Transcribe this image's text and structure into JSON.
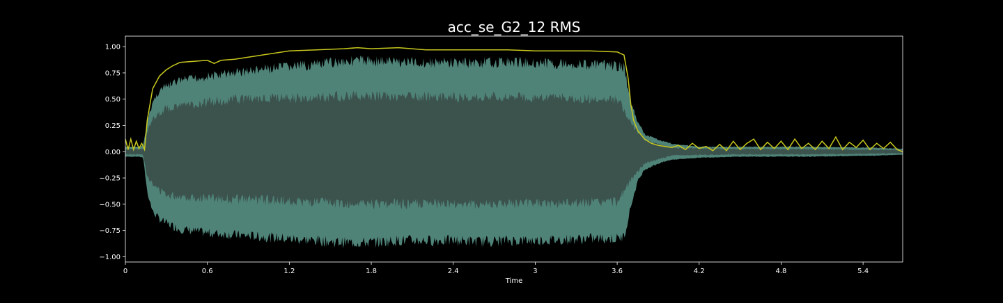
{
  "chart_data": {
    "type": "area",
    "title": "acc_se_G2_12 RMS",
    "xlabel": "Time",
    "ylabel": "",
    "xlim": [
      0,
      5.69
    ],
    "ylim": [
      -1.05,
      1.1
    ],
    "x_ticks": [
      0,
      0.6,
      1.2,
      1.8,
      2.4,
      3,
      3.6,
      4.2,
      4.8,
      5.4
    ],
    "x_tick_labels": [
      "0",
      "0.6",
      "1.2",
      "1.8",
      "2.4",
      "3",
      "3.6",
      "4.2",
      "4.8",
      "5.4"
    ],
    "y_ticks": [
      1.0,
      0.75,
      0.5,
      0.25,
      0.0,
      -0.25,
      -0.5,
      -0.75,
      -1.0
    ],
    "y_tick_labels": [
      "1.00",
      "0.75",
      "0.50",
      "0.25",
      "0.00",
      "−0.25",
      "−0.50",
      "−0.75",
      "−1.00"
    ],
    "grid": false,
    "legend": "none",
    "colors": {
      "background": "#000000",
      "axes_edge": "#ffffff",
      "text": "#ffffff",
      "waveform_envelope": "#4f8378",
      "waveform_core": "#3c534d",
      "rms_line": "#c8c81e"
    },
    "series": [
      {
        "role": "waveform_upper",
        "x": [
          0,
          0.05,
          0.1,
          0.13,
          0.16,
          0.2,
          0.25,
          0.3,
          0.4,
          0.5,
          0.6,
          0.8,
          1.0,
          1.2,
          1.4,
          1.6,
          1.8,
          2.0,
          2.2,
          2.4,
          2.6,
          2.8,
          3.0,
          3.2,
          3.4,
          3.6,
          3.65,
          3.7,
          3.75,
          3.8,
          3.9,
          4.0,
          4.2,
          4.5,
          5.0,
          5.5,
          5.69
        ],
        "y": [
          0.05,
          0.05,
          0.05,
          0.06,
          0.3,
          0.5,
          0.62,
          0.66,
          0.72,
          0.74,
          0.76,
          0.8,
          0.83,
          0.86,
          0.88,
          0.92,
          0.92,
          0.91,
          0.9,
          0.9,
          0.9,
          0.91,
          0.9,
          0.89,
          0.88,
          0.87,
          0.85,
          0.5,
          0.3,
          0.18,
          0.12,
          0.08,
          0.05,
          0.05,
          0.05,
          0.04,
          0.03
        ]
      },
      {
        "role": "waveform_lower",
        "x": [
          0,
          0.05,
          0.1,
          0.13,
          0.16,
          0.2,
          0.25,
          0.3,
          0.4,
          0.5,
          0.6,
          0.8,
          1.0,
          1.2,
          1.4,
          1.6,
          1.8,
          2.0,
          2.2,
          2.4,
          2.6,
          2.8,
          3.0,
          3.2,
          3.4,
          3.6,
          3.65,
          3.7,
          3.75,
          3.8,
          3.9,
          4.0,
          4.2,
          4.5,
          5.0,
          5.5,
          5.69
        ],
        "y": [
          -0.05,
          -0.05,
          -0.05,
          -0.06,
          -0.4,
          -0.6,
          -0.68,
          -0.72,
          -0.78,
          -0.8,
          -0.82,
          -0.84,
          -0.86,
          -0.88,
          -0.9,
          -0.92,
          -0.92,
          -0.9,
          -0.9,
          -0.9,
          -0.91,
          -0.9,
          -0.9,
          -0.89,
          -0.88,
          -0.88,
          -0.86,
          -0.55,
          -0.3,
          -0.18,
          -0.12,
          -0.08,
          -0.06,
          -0.05,
          -0.05,
          -0.04,
          -0.03
        ]
      },
      {
        "role": "waveform_core_upper",
        "x": [
          0,
          0.13,
          0.16,
          0.2,
          0.3,
          0.5,
          0.8,
          1.2,
          1.6,
          2.0,
          2.4,
          2.8,
          3.2,
          3.6,
          3.7,
          3.8,
          4.0,
          4.5,
          5.0,
          5.69
        ],
        "y": [
          0.03,
          0.03,
          0.2,
          0.35,
          0.45,
          0.5,
          0.55,
          0.56,
          0.58,
          0.58,
          0.57,
          0.57,
          0.56,
          0.55,
          0.3,
          0.12,
          0.04,
          0.03,
          0.03,
          0.02
        ]
      },
      {
        "role": "waveform_core_lower",
        "x": [
          0,
          0.13,
          0.16,
          0.2,
          0.3,
          0.5,
          0.8,
          1.2,
          1.6,
          2.0,
          2.4,
          2.8,
          3.2,
          3.6,
          3.7,
          3.8,
          4.0,
          4.5,
          5.0,
          5.69
        ],
        "y": [
          -0.03,
          -0.03,
          -0.25,
          -0.35,
          -0.45,
          -0.48,
          -0.5,
          -0.52,
          -0.55,
          -0.55,
          -0.55,
          -0.55,
          -0.54,
          -0.53,
          -0.3,
          -0.12,
          -0.04,
          -0.03,
          -0.03,
          -0.02
        ]
      },
      {
        "role": "rms",
        "x": [
          0,
          0.02,
          0.04,
          0.06,
          0.08,
          0.1,
          0.12,
          0.14,
          0.16,
          0.2,
          0.25,
          0.3,
          0.35,
          0.4,
          0.5,
          0.6,
          0.65,
          0.7,
          0.8,
          1.0,
          1.2,
          1.4,
          1.6,
          1.7,
          1.8,
          2.0,
          2.2,
          2.4,
          2.6,
          2.8,
          3.0,
          3.2,
          3.4,
          3.6,
          3.65,
          3.68,
          3.7,
          3.72,
          3.75,
          3.8,
          3.85,
          3.9,
          3.95,
          4.0,
          4.05,
          4.1,
          4.15,
          4.2,
          4.25,
          4.3,
          4.35,
          4.4,
          4.45,
          4.5,
          4.55,
          4.6,
          4.65,
          4.7,
          4.75,
          4.8,
          4.85,
          4.9,
          4.95,
          5.0,
          5.05,
          5.1,
          5.15,
          5.2,
          5.25,
          5.3,
          5.35,
          5.4,
          5.45,
          5.5,
          5.55,
          5.6,
          5.65,
          5.69
        ],
        "y": [
          0.12,
          0.02,
          0.12,
          0.02,
          0.1,
          0.03,
          0.08,
          0.02,
          0.3,
          0.6,
          0.72,
          0.78,
          0.82,
          0.85,
          0.86,
          0.87,
          0.84,
          0.87,
          0.88,
          0.92,
          0.96,
          0.97,
          0.98,
          0.99,
          0.98,
          0.99,
          0.97,
          0.97,
          0.97,
          0.97,
          0.96,
          0.96,
          0.96,
          0.95,
          0.92,
          0.7,
          0.45,
          0.3,
          0.2,
          0.12,
          0.08,
          0.06,
          0.05,
          0.04,
          0.06,
          0.02,
          0.08,
          0.03,
          0.05,
          0.01,
          0.07,
          0.01,
          0.1,
          0.02,
          0.08,
          0.12,
          0.02,
          0.09,
          0.03,
          0.1,
          0.02,
          0.12,
          0.03,
          0.08,
          0.02,
          0.1,
          0.03,
          0.14,
          0.02,
          0.09,
          0.04,
          0.11,
          0.02,
          0.08,
          0.03,
          0.09,
          0.02,
          0.0
        ]
      }
    ]
  }
}
